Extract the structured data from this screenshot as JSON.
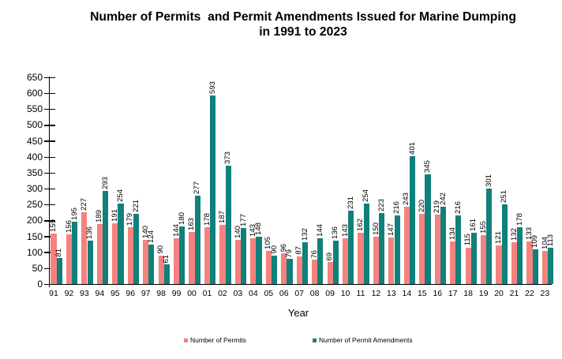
{
  "title": {
    "line1": "Number of Permits  and Permit Amendments Issued for Marine Dumping",
    "line2": "in 1991 to 2023"
  },
  "chart_data": {
    "type": "bar",
    "title": "Number of Permits and Permit Amendments Issued for Marine Dumping in 1991 to 2023",
    "xlabel": "Year",
    "ylabel": "",
    "ylim": [
      0,
      650
    ],
    "ytick_step": 50,
    "grid": false,
    "legend_position": "bottom",
    "bar_value_labels": "rotated 90 degrees above bars",
    "categories": [
      "91",
      "92",
      "93",
      "94",
      "95",
      "96",
      "97",
      "98",
      "99",
      "00",
      "01",
      "02",
      "03",
      "04",
      "05",
      "06",
      "07",
      "08",
      "09",
      "10",
      "11",
      "12",
      "13",
      "14",
      "15",
      "16",
      "17",
      "18",
      "19",
      "20",
      "21",
      "22",
      "23"
    ],
    "series": [
      {
        "name": "Number of Permits",
        "color": "#F5827E",
        "values": [
          159,
          156,
          227,
          189,
          191,
          179,
          140,
          90,
          144,
          163,
          178,
          187,
          140,
          143,
          105,
          96,
          87,
          76,
          69,
          143,
          162,
          150,
          147,
          243,
          220,
          219,
          134,
          115,
          155,
          121,
          132,
          133,
          104
        ]
      },
      {
        "name": "Number of Permit Amendments",
        "color": "#10807A",
        "values": [
          81,
          195,
          136,
          293,
          254,
          221,
          124,
          61,
          180,
          277,
          593,
          373,
          177,
          148,
          90,
          79,
          132,
          144,
          136,
          231,
          254,
          223,
          216,
          401,
          345,
          242,
          216,
          161,
          301,
          251,
          178,
          109,
          113
        ]
      }
    ]
  },
  "legend": {
    "items": [
      {
        "label": "Number of Permits"
      },
      {
        "label": "Number of Permit Amendments"
      }
    ]
  }
}
